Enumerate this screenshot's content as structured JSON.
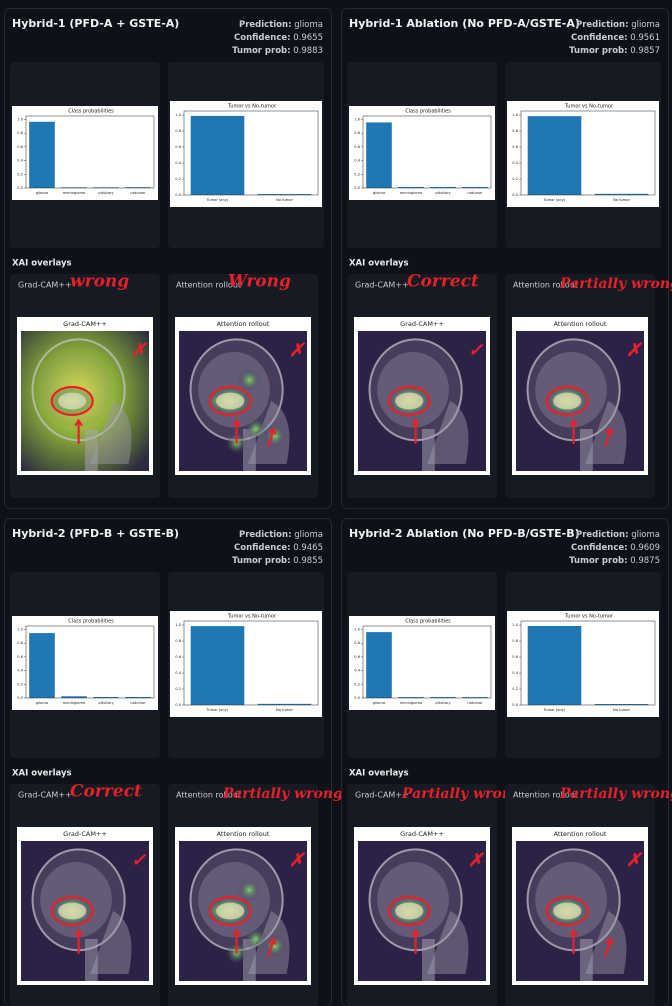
{
  "panels": [
    {
      "title": "Hybrid-1 (PFD-A + GSTE-A)",
      "prediction_label": "Prediction:",
      "prediction": "glioma",
      "confidence_label": "Confidence:",
      "confidence": 0.9655,
      "tumor_prob_label": "Tumor prob:",
      "tumor_prob": 0.9883,
      "class_chart": {
        "type": "bar",
        "title": "Class probabilities",
        "categories": [
          "glioma",
          "meningioma",
          "pituitary",
          "notumor"
        ],
        "values": [
          0.9655,
          0.01,
          0.01,
          0.0117
        ],
        "color": "#1f77b4",
        "ylim": [
          0,
          1.05
        ],
        "yticks": [
          {
            "value": 0,
            "label": "0.0"
          },
          {
            "value": 0.2,
            "label": "0.2"
          },
          {
            "value": 0.4,
            "label": "0.4"
          },
          {
            "value": 0.6,
            "label": "0.6"
          },
          {
            "value": 0.8,
            "label": "0.8"
          },
          {
            "value": 1,
            "label": "1.0"
          }
        ]
      },
      "tumor_chart": {
        "type": "bar",
        "title": "Tumor vs No-tumor",
        "categories": [
          "Tumor (any)",
          "No tumor"
        ],
        "values": [
          0.9883,
          0.0117
        ],
        "color": "#1f77b4",
        "ylim": [
          0,
          1.05
        ],
        "yticks": [
          {
            "value": 0,
            "label": "0.0"
          },
          {
            "value": 0.2,
            "label": "0.2"
          },
          {
            "value": 0.4,
            "label": "0.4"
          },
          {
            "value": 0.6,
            "label": "0.6"
          },
          {
            "value": 0.8,
            "label": "0.8"
          },
          {
            "value": 1,
            "label": "1.0"
          }
        ]
      },
      "xai_title": "XAI overlays",
      "overlays": [
        {
          "label": "Grad-CAM++",
          "figure_title": "Grad-CAM++",
          "annotation": "wrong",
          "verdict": "✗"
        },
        {
          "label": "Attention rollout",
          "figure_title": "Attention rollout",
          "annotation": "Wrong",
          "verdict": "✗"
        }
      ]
    },
    {
      "title": "Hybrid-1 Ablation (No PFD-A/GSTE-A)",
      "prediction_label": "Prediction:",
      "prediction": "glioma",
      "confidence_label": "Confidence:",
      "confidence": 0.9561,
      "tumor_prob_label": "Tumor prob:",
      "tumor_prob": 0.9857,
      "class_chart": {
        "type": "bar",
        "title": "Class probabilities",
        "categories": [
          "glioma",
          "meningioma",
          "pituitary",
          "notumor"
        ],
        "values": [
          0.9561,
          0.0148,
          0.0148,
          0.0143
        ],
        "color": "#1f77b4",
        "ylim": [
          0,
          1.05
        ],
        "yticks": [
          {
            "value": 0,
            "label": "0.0"
          },
          {
            "value": 0.2,
            "label": "0.2"
          },
          {
            "value": 0.4,
            "label": "0.4"
          },
          {
            "value": 0.6,
            "label": "0.6"
          },
          {
            "value": 0.8,
            "label": "0.8"
          },
          {
            "value": 1,
            "label": "1.0"
          }
        ]
      },
      "tumor_chart": {
        "type": "bar",
        "title": "Tumor vs No-tumor",
        "categories": [
          "Tumor (any)",
          "No tumor"
        ],
        "values": [
          0.9857,
          0.0143
        ],
        "color": "#1f77b4",
        "ylim": [
          0,
          1.05
        ],
        "yticks": [
          {
            "value": 0,
            "label": "0.0"
          },
          {
            "value": 0.2,
            "label": "0.2"
          },
          {
            "value": 0.4,
            "label": "0.4"
          },
          {
            "value": 0.6,
            "label": "0.6"
          },
          {
            "value": 0.8,
            "label": "0.8"
          },
          {
            "value": 1,
            "label": "1.0"
          }
        ]
      },
      "xai_title": "XAI overlays",
      "overlays": [
        {
          "label": "Grad-CAM++",
          "figure_title": "Grad-CAM++",
          "annotation": "Correct",
          "verdict": "✓"
        },
        {
          "label": "Attention rollout",
          "figure_title": "Attention rollout",
          "annotation": "Partially wrong",
          "verdict": "✗"
        }
      ]
    },
    {
      "title": "Hybrid-2 (PFD-B + GSTE-B)",
      "prediction_label": "Prediction:",
      "prediction": "glioma",
      "confidence_label": "Confidence:",
      "confidence": 0.9465,
      "tumor_prob_label": "Tumor prob:",
      "tumor_prob": 0.9855,
      "class_chart": {
        "type": "bar",
        "title": "Class probabilities",
        "categories": [
          "glioma",
          "meningioma",
          "pituitary",
          "notumor"
        ],
        "values": [
          0.9465,
          0.025,
          0.014,
          0.0145
        ],
        "color": "#1f77b4",
        "ylim": [
          0,
          1.05
        ],
        "yticks": [
          {
            "value": 0,
            "label": "0.0"
          },
          {
            "value": 0.2,
            "label": "0.2"
          },
          {
            "value": 0.4,
            "label": "0.4"
          },
          {
            "value": 0.6,
            "label": "0.6"
          },
          {
            "value": 0.8,
            "label": "0.8"
          },
          {
            "value": 1,
            "label": "1.0"
          }
        ]
      },
      "tumor_chart": {
        "type": "bar",
        "title": "Tumor vs No-tumor",
        "categories": [
          "Tumor (any)",
          "No tumor"
        ],
        "values": [
          0.9855,
          0.0145
        ],
        "color": "#1f77b4",
        "ylim": [
          0,
          1.05
        ],
        "yticks": [
          {
            "value": 0,
            "label": "0.0"
          },
          {
            "value": 0.2,
            "label": "0.2"
          },
          {
            "value": 0.4,
            "label": "0.4"
          },
          {
            "value": 0.6,
            "label": "0.6"
          },
          {
            "value": 0.8,
            "label": "0.8"
          },
          {
            "value": 1,
            "label": "1.0"
          }
        ]
      },
      "xai_title": "XAI overlays",
      "overlays": [
        {
          "label": "Grad-CAM++",
          "figure_title": "Grad-CAM++",
          "annotation": "Correct",
          "verdict": "✓"
        },
        {
          "label": "Attention rollout",
          "figure_title": "Attention rollout",
          "annotation": "Partially wrong",
          "verdict": "✗"
        }
      ]
    },
    {
      "title": "Hybrid-2 Ablation (No PFD-B/GSTE-B)",
      "prediction_label": "Prediction:",
      "prediction": "glioma",
      "confidence_label": "Confidence:",
      "confidence": 0.9609,
      "tumor_prob_label": "Tumor prob:",
      "tumor_prob": 0.9875,
      "class_chart": {
        "type": "bar",
        "title": "Class probabilities",
        "categories": [
          "glioma",
          "meningioma",
          "pituitary",
          "notumor"
        ],
        "values": [
          0.9609,
          0.0133,
          0.0133,
          0.0125
        ],
        "color": "#1f77b4",
        "ylim": [
          0,
          1.05
        ],
        "yticks": [
          {
            "value": 0,
            "label": "0.0"
          },
          {
            "value": 0.2,
            "label": "0.2"
          },
          {
            "value": 0.4,
            "label": "0.4"
          },
          {
            "value": 0.6,
            "label": "0.6"
          },
          {
            "value": 0.8,
            "label": "0.8"
          },
          {
            "value": 1,
            "label": "1.0"
          }
        ]
      },
      "tumor_chart": {
        "type": "bar",
        "title": "Tumor vs No-tumor",
        "categories": [
          "Tumor (any)",
          "No tumor"
        ],
        "values": [
          0.9875,
          0.0125
        ],
        "color": "#1f77b4",
        "ylim": [
          0,
          1.05
        ],
        "yticks": [
          {
            "value": 0,
            "label": "0.0"
          },
          {
            "value": 0.2,
            "label": "0.2"
          },
          {
            "value": 0.4,
            "label": "0.4"
          },
          {
            "value": 0.6,
            "label": "0.6"
          },
          {
            "value": 0.8,
            "label": "0.8"
          },
          {
            "value": 1,
            "label": "1.0"
          }
        ]
      },
      "xai_title": "XAI overlays",
      "overlays": [
        {
          "label": "Grad-CAM++",
          "figure_title": "Grad-CAM++",
          "annotation": "Partially wrong",
          "verdict": "✗"
        },
        {
          "label": "Attention rollout",
          "figure_title": "Attention rollout",
          "annotation": "Partially wrong",
          "verdict": "✗"
        }
      ]
    }
  ]
}
